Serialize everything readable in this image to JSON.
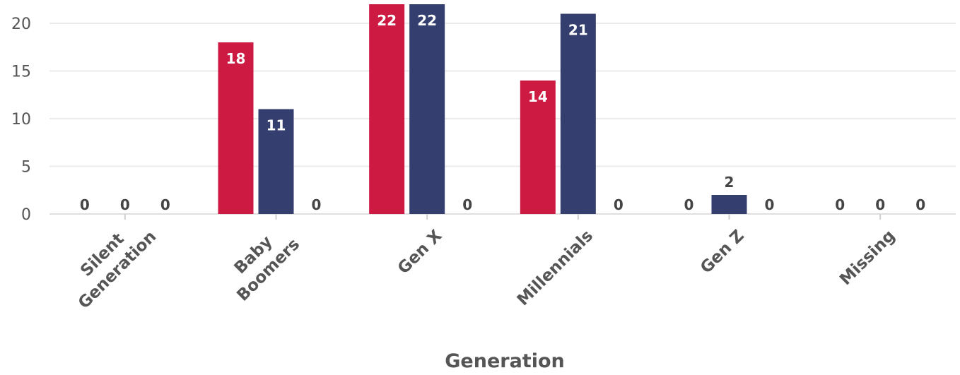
{
  "chart_data": {
    "type": "bar",
    "xlabel": "Generation",
    "ylabel": "",
    "ylim": [
      0,
      22
    ],
    "yticks": [
      0,
      5,
      10,
      15,
      20
    ],
    "grid": true,
    "categories": [
      "Silent Generation",
      "Baby Boomers",
      "Gen X",
      "Millennials",
      "Gen Z",
      "Missing"
    ],
    "series": [
      {
        "color": "#cc1a42",
        "values": [
          0,
          18,
          22,
          14,
          0,
          0
        ]
      },
      {
        "color": "#343f6f",
        "values": [
          0,
          11,
          22,
          21,
          2,
          0
        ]
      },
      {
        "color": "#8c8c8c",
        "values": [
          0,
          0,
          0,
          0,
          0,
          0
        ]
      }
    ]
  }
}
